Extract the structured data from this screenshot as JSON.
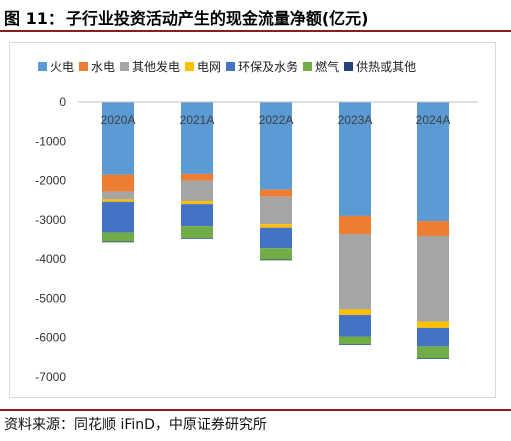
{
  "title": {
    "figure_label": "图 11：",
    "text": "子行业投资活动产生的现金流量净额(亿元)"
  },
  "source": "资料来源：同花顺 iFinD，中原证券研究所",
  "chart_data": {
    "type": "bar",
    "stacked": true,
    "categories": [
      "2020A",
      "2021A",
      "2022A",
      "2023A",
      "2024A"
    ],
    "series": [
      {
        "name": "火电",
        "color": "#5b9bd5",
        "values": [
          -1850,
          -1830,
          -2230,
          -2900,
          -3030
        ]
      },
      {
        "name": "水电",
        "color": "#ed7d31",
        "values": [
          -430,
          -170,
          -180,
          -460,
          -380
        ]
      },
      {
        "name": "其他发电",
        "color": "#a5a5a5",
        "values": [
          -200,
          -520,
          -700,
          -1920,
          -2180
        ]
      },
      {
        "name": "电网",
        "color": "#ffc000",
        "values": [
          -60,
          -80,
          -90,
          -140,
          -160
        ]
      },
      {
        "name": "环保及水务",
        "color": "#4472c4",
        "values": [
          -780,
          -560,
          -520,
          -550,
          -470
        ]
      },
      {
        "name": "燃气",
        "color": "#70ad47",
        "values": [
          -230,
          -300,
          -290,
          -190,
          -300
        ]
      },
      {
        "name": "供热或其他",
        "color": "#264478",
        "values": [
          -20,
          -20,
          -20,
          -20,
          -20
        ]
      }
    ],
    "ylim": [
      -7000,
      0
    ],
    "yticks": [
      0,
      -1000,
      -2000,
      -3000,
      -4000,
      -5000,
      -6000,
      -7000
    ],
    "legend_position": "top",
    "grid": false
  }
}
